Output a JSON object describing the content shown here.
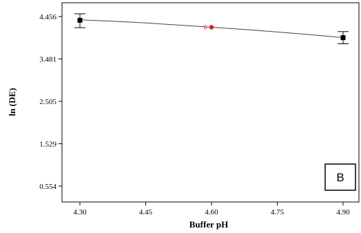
{
  "chart_data": {
    "type": "line",
    "xlabel": "Buffer pH",
    "ylabel": "ln (DE)",
    "xlim": [
      4.3,
      4.9
    ],
    "ylim": [
      0.554,
      4.456
    ],
    "x_ticks": [
      "4.30",
      "4.45",
      "4.60",
      "4.75",
      "4.90"
    ],
    "x_tick_values": [
      4.3,
      4.45,
      4.6,
      4.75,
      4.9
    ],
    "y_ticks": [
      "0.554",
      "1.529",
      "2.505",
      "3.481",
      "4.456"
    ],
    "y_tick_values": [
      0.554,
      1.529,
      2.505,
      3.481,
      4.456
    ],
    "curve": {
      "x": [
        4.3,
        4.375,
        4.45,
        4.525,
        4.6,
        4.675,
        4.75,
        4.825,
        4.9
      ],
      "y": [
        4.38,
        4.35,
        4.31,
        4.26,
        4.21,
        4.16,
        4.1,
        4.04,
        3.97
      ]
    },
    "error_points": [
      {
        "x": 4.3,
        "y": 4.37,
        "low": 4.2,
        "high": 4.52
      },
      {
        "x": 4.9,
        "y": 3.97,
        "low": 3.83,
        "high": 4.11
      }
    ],
    "highlight_point": {
      "x": 4.6,
      "y": 4.21,
      "label": "6",
      "color": "#cc2222"
    },
    "panel_label": "B",
    "grid": false
  }
}
